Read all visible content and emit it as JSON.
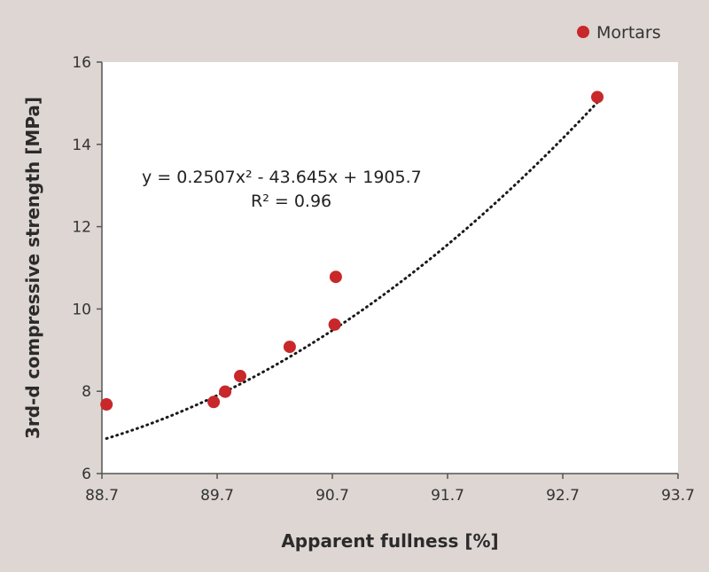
{
  "chart_data": {
    "type": "scatter",
    "xlabel": "Apparent fullness [%]",
    "ylabel": "3rd-d compressive strength [MPa]",
    "xlim": [
      88.7,
      93.7
    ],
    "ylim": [
      6,
      16
    ],
    "x_ticks": [
      "88.7",
      "89.7",
      "90.7",
      "91.7",
      "92.7",
      "93.7"
    ],
    "y_ticks": [
      "6",
      "8",
      "10",
      "12",
      "14",
      "16"
    ],
    "grid": false,
    "legend_position": "top-right",
    "series": [
      {
        "name": "Mortars",
        "color": "#c8282a",
        "points": [
          {
            "x": 88.74,
            "y": 7.68
          },
          {
            "x": 89.67,
            "y": 7.74
          },
          {
            "x": 89.77,
            "y": 7.99
          },
          {
            "x": 89.9,
            "y": 8.37
          },
          {
            "x": 90.33,
            "y": 9.08
          },
          {
            "x": 90.73,
            "y": 10.78
          },
          {
            "x": 90.72,
            "y": 9.62
          },
          {
            "x": 93.0,
            "y": 15.15
          }
        ]
      }
    ],
    "trendline": {
      "type": "polynomial-2",
      "coefficients": [
        0.2507,
        -43.645,
        1905.7
      ],
      "x_range": [
        88.74,
        93.0
      ],
      "style": "dotted",
      "color": "#1a1a1a"
    },
    "annotation": {
      "equation": "y = 0.2507x² - 43.645x + 1905.7",
      "r2": "R² = 0.96"
    }
  }
}
